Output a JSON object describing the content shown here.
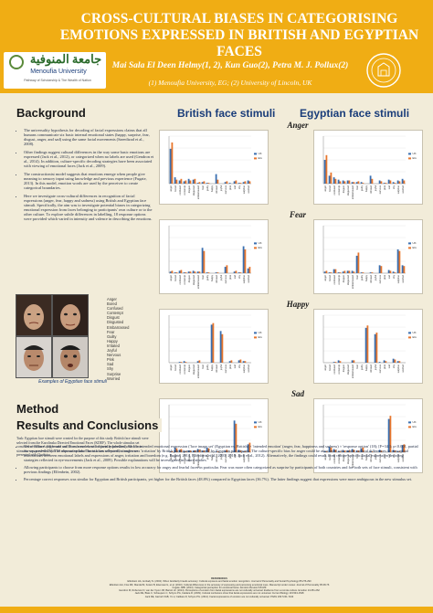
{
  "header": {
    "title": "CROSS-CULTURAL BIASES IN CATEGORISING EMOTIONS EXPRESSED IN BRITISH AND EGYPTIAN FACES",
    "authors": "Mai Sala El Deen Helmy(1, 2), Kun Guo(2), Petra M. J. Pollux(2)",
    "affiliations": "(1) Menoufia University, EG; (2) University of Lincoln, UK",
    "logo_arabic": "جامعة المنوفية",
    "logo_english": "Menoufia University",
    "logo_tagline": "Pathway of Scholarship & The Wealth of Nation",
    "colors": {
      "accent": "#f0ad14",
      "bullet_text": "#1f2a44",
      "column_head": "#1a3d7a",
      "background": "#f2ecd9"
    }
  },
  "background": {
    "title": "Background",
    "bullets": [
      "The universality hypothesis for decoding of facial expressions claims that all humans communicate six basic internal emotional states (happy, surprise, fear, disgust, anger, and sad) using the same facial movements (Saeedizad et al., 2008).",
      "Other findings suggest cultural differences in the way some basic emotions are expressed (Jack et al., 2012), or categorized when no labels are used (Gendron et al., 2014). In addition, culture-specific decoding strategies have been associated with viewing of emotional faces (Jack et al., 2009).",
      "The constructionist model suggests that emotions emerge when people give meaning to sensory input using knowledge and previous experience (Fugate, 2013). In this model, emotion words are used by the perceiver to create categorical boundaries.",
      "Here we investigate cross-cultural differences in recognition of facial expressions (anger, fear, happy and sadness) using British and Egyptian face stimuli. Specifically, the aim was to investigate potential biases in categorizing emotional expression from faces belonging to participants' own culture or to the other culture. To explore subtle differences in labelling, 18 response options were provided which varied in intensity and valence in describing the emotions."
    ],
    "faces_caption": "Examples of Egyptian face stimuli",
    "label_options": [
      "Anger",
      "Bored",
      "Confused",
      "Contempt",
      "Disgust",
      "Disgusted",
      "Embarrassed",
      "Fear",
      "Guilty",
      "Happy",
      "Irritated",
      "Joyful",
      "Nervous",
      "Pink",
      "Sad",
      "Shy",
      "Surprise",
      "Worried"
    ]
  },
  "method": {
    "title": "Method",
    "participants": "Participants: 91 British adults (16 men, 75 women, Age= 21±1.1) and 133 Egyptian adults (12 men, 117 women, Age= 20.4±0.25).",
    "task": "Task: Egyptian face stimuli were created for the purpose of this study. British face stimuli were selected from the Karolinska Directed Emotional Faces (KDEF). The whole stimulus set consisted of 80 faces (10 female and 10 male models with 4 facial expressions). Each face stimulus was presented with 18 response options. The task was self-paced, stimuli were presented with Qualtrics."
  },
  "results": {
    "title": "Results and Conclusions",
    "bullets": [
      "'Own-culture' anger and sad faces were more frequently labelled with the intended emotional expression ('face image set' (Egyptian vs. British) × 'intended emotion' (anger, fear, happiness and sadness) × 'response option' (18); [F=34.1; p<0.001, partial eta-squared=0.25]. The alternative label most often selected for anger was 'irritation' by British participants and 'bored' by Egyptian participants. The culture-specific bias for anger could be associated with subtle cultural differences in conceptual associations between emotional labels and expressions of anger, irritation and boredom (e.g. Fugate, 2014, Elfenbein et al., 2003; 2010; Jack et al., 2012). Alternatively, the findings could result from culture-specific facial expression decoding strategies reflected in eye-movements (Jack et al., 2009). Possible explanations will be investigated in future studies.",
      "Allowing participants to choose from more response options results in low accuracy for angry and fearful faces in particular. Fear was more often categorized as surprise by participants of both countries and for both sets of face stimuli, consistent with previous findings (Elfenbein, 2002).",
      "Percentage correct responses was similar for Egyptian and British participants, yet higher for the British faces (48.8%) compared to Egyptian faces (36.7%). The latter findings suggest that expressions were more ambiguous in the new stimulus set."
    ],
    "references": [
      "REFERENCES",
      "Elfenbein HA, Ambady N. (2002). When familiarity breeds accuracy: Cultural exposure and facial emotion recognition. Journal of Personality and Social Psychology 85:276-290",
      "Elfenbein HA, Fiss MZ, Mandal M, Kotani B, Elsemasi G, et al. (2010). Cultural differences in the accuracy of expressing and perceiving emotional cues. Manuscript under review. Journal of Personality 95:48-76",
      "Fugate JMB. (2013). Categorical perception for emotional faces. Emotion Review 5:84-89",
      "Gendron M, Roberson D, van der Vyver JM, Barrett LF. (2014). Perceptions of emotion from facial expressions are not culturally universal: Evidence from a remote culture. Emotion 14:251-262",
      "Jack RE, Blais C, Scheepers C, Schyns PG, Caldara R. (2009). Cultural confusions show that facial expressions are not universal. Current Biology 19:1543-1548",
      "Jack RE, Garrod OGB, Yu H, Caldara R, Schyns PG. (2012). Facial expressions of emotion are not culturally universal. PNAS 109:7241-7244"
    ]
  },
  "figure": {
    "left_head": "British face stimuli",
    "right_head": "Egyptian face stimuli",
    "emotions": [
      "Anger",
      "Fear",
      "Happy",
      "Sad"
    ],
    "legend": [
      "UK",
      "EG"
    ],
    "option_labels": [
      "anger",
      "bored",
      "confused",
      "contempt",
      "disgust",
      "disgusted",
      "embarrassed",
      "fear",
      "guilty",
      "happy",
      "irritated",
      "joyful",
      "nervous",
      "pink",
      "sad",
      "shy",
      "surprise",
      "worried"
    ]
  },
  "chart_data": [
    {
      "type": "bar",
      "emotion": "Anger",
      "stimuli": "British",
      "categories": [
        "anger",
        "bored",
        "confused",
        "contempt",
        "disgust",
        "disgusted",
        "embarrassed",
        "fear",
        "guilty",
        "happy",
        "irritated",
        "joyful",
        "nervous",
        "pink",
        "sad",
        "shy",
        "surprise",
        "worried"
      ],
      "series": [
        {
          "name": "UK",
          "values": [
            44,
            8,
            4,
            3,
            6,
            5,
            1,
            2,
            1,
            0,
            12,
            0,
            2,
            1,
            3,
            1,
            2,
            4
          ]
        },
        {
          "name": "EG",
          "values": [
            52,
            5,
            6,
            4,
            4,
            6,
            2,
            3,
            1,
            0,
            5,
            0,
            3,
            0,
            4,
            1,
            3,
            3
          ]
        }
      ],
      "ylim": [
        0,
        60
      ]
    },
    {
      "type": "bar",
      "emotion": "Anger",
      "stimuli": "Egyptian",
      "categories": [
        "anger",
        "bored",
        "confused",
        "contempt",
        "disgust",
        "disgusted",
        "embarrassed",
        "fear",
        "guilty",
        "happy",
        "irritated",
        "joyful",
        "nervous",
        "pink",
        "sad",
        "shy",
        "surprise",
        "worried"
      ],
      "series": [
        {
          "name": "UK",
          "values": [
            30,
            10,
            8,
            5,
            4,
            4,
            2,
            2,
            2,
            0,
            10,
            0,
            4,
            1,
            5,
            2,
            4,
            6
          ]
        },
        {
          "name": "EG",
          "values": [
            36,
            14,
            6,
            3,
            3,
            4,
            2,
            3,
            1,
            0,
            6,
            0,
            3,
            1,
            4,
            1,
            3,
            4
          ]
        }
      ],
      "ylim": [
        0,
        60
      ]
    },
    {
      "type": "bar",
      "emotion": "Fear",
      "stimuli": "British",
      "categories": [
        "anger",
        "bored",
        "confused",
        "contempt",
        "disgust",
        "disgusted",
        "embarrassed",
        "fear",
        "guilty",
        "happy",
        "irritated",
        "joyful",
        "nervous",
        "pink",
        "sad",
        "shy",
        "surprise",
        "worried"
      ],
      "series": [
        {
          "name": "UK",
          "values": [
            2,
            1,
            3,
            1,
            2,
            3,
            2,
            32,
            1,
            0,
            1,
            0,
            8,
            0,
            2,
            1,
            34,
            6
          ]
        },
        {
          "name": "EG",
          "values": [
            3,
            1,
            4,
            1,
            2,
            2,
            2,
            28,
            1,
            0,
            1,
            0,
            10,
            0,
            3,
            1,
            30,
            8
          ]
        }
      ],
      "ylim": [
        0,
        60
      ]
    },
    {
      "type": "bar",
      "emotion": "Fear",
      "stimuli": "Egyptian",
      "categories": [
        "anger",
        "bored",
        "confused",
        "contempt",
        "disgust",
        "disgusted",
        "embarrassed",
        "fear",
        "guilty",
        "happy",
        "irritated",
        "joyful",
        "nervous",
        "pink",
        "sad",
        "shy",
        "surprise",
        "worried"
      ],
      "series": [
        {
          "name": "UK",
          "values": [
            2,
            1,
            5,
            1,
            2,
            3,
            3,
            22,
            1,
            0,
            1,
            0,
            10,
            0,
            4,
            2,
            30,
            10
          ]
        },
        {
          "name": "EG",
          "values": [
            3,
            1,
            5,
            1,
            3,
            3,
            2,
            26,
            1,
            0,
            1,
            0,
            9,
            0,
            3,
            1,
            28,
            9
          ]
        }
      ],
      "ylim": [
        0,
        60
      ]
    },
    {
      "type": "bar",
      "emotion": "Happy",
      "stimuli": "British",
      "categories": [
        "anger",
        "bored",
        "confused",
        "contempt",
        "disgust",
        "disgusted",
        "embarrassed",
        "fear",
        "guilty",
        "happy",
        "irritated",
        "joyful",
        "nervous",
        "pink",
        "sad",
        "shy",
        "surprise",
        "worried"
      ],
      "series": [
        {
          "name": "UK",
          "values": [
            0,
            0,
            1,
            2,
            0,
            0,
            2,
            0,
            0,
            48,
            0,
            40,
            0,
            2,
            0,
            3,
            2,
            0
          ]
        },
        {
          "name": "EG",
          "values": [
            0,
            0,
            1,
            1,
            0,
            0,
            3,
            0,
            0,
            50,
            0,
            36,
            0,
            3,
            0,
            4,
            2,
            0
          ]
        }
      ],
      "ylim": [
        0,
        60
      ]
    },
    {
      "type": "bar",
      "emotion": "Happy",
      "stimuli": "Egyptian",
      "categories": [
        "anger",
        "bored",
        "confused",
        "contempt",
        "disgust",
        "disgusted",
        "embarrassed",
        "fear",
        "guilty",
        "happy",
        "irritated",
        "joyful",
        "nervous",
        "pink",
        "sad",
        "shy",
        "surprise",
        "worried"
      ],
      "series": [
        {
          "name": "UK",
          "values": [
            0,
            0,
            1,
            3,
            0,
            0,
            3,
            0,
            0,
            44,
            0,
            36,
            1,
            3,
            0,
            5,
            2,
            0
          ]
        },
        {
          "name": "EG",
          "values": [
            0,
            0,
            1,
            2,
            0,
            0,
            3,
            0,
            0,
            47,
            0,
            38,
            0,
            2,
            0,
            4,
            2,
            0
          ]
        }
      ],
      "ylim": [
        0,
        60
      ]
    },
    {
      "type": "bar",
      "emotion": "Sad",
      "stimuli": "British",
      "categories": [
        "anger",
        "bored",
        "confused",
        "contempt",
        "disgust",
        "disgusted",
        "embarrassed",
        "fear",
        "guilty",
        "happy",
        "irritated",
        "joyful",
        "nervous",
        "pink",
        "sad",
        "shy",
        "surprise",
        "worried"
      ],
      "series": [
        {
          "name": "UK",
          "values": [
            1,
            6,
            3,
            1,
            2,
            2,
            4,
            2,
            6,
            0,
            1,
            0,
            2,
            0,
            40,
            3,
            1,
            10
          ]
        },
        {
          "name": "EG",
          "values": [
            1,
            5,
            4,
            1,
            2,
            2,
            3,
            2,
            5,
            0,
            1,
            0,
            3,
            0,
            36,
            2,
            1,
            12
          ]
        }
      ],
      "ylim": [
        0,
        60
      ]
    },
    {
      "type": "bar",
      "emotion": "Sad",
      "stimuli": "Egyptian",
      "categories": [
        "anger",
        "bored",
        "confused",
        "contempt",
        "disgust",
        "disgusted",
        "embarrassed",
        "fear",
        "guilty",
        "happy",
        "irritated",
        "joyful",
        "nervous",
        "pink",
        "sad",
        "shy",
        "surprise",
        "worried"
      ],
      "series": [
        {
          "name": "UK",
          "values": [
            1,
            7,
            4,
            1,
            2,
            2,
            4,
            2,
            5,
            0,
            1,
            0,
            3,
            0,
            42,
            3,
            1,
            9
          ]
        },
        {
          "name": "EG",
          "values": [
            1,
            6,
            3,
            1,
            2,
            2,
            3,
            2,
            6,
            0,
            1,
            0,
            2,
            0,
            46,
            2,
            1,
            10
          ]
        }
      ],
      "ylim": [
        0,
        60
      ]
    }
  ]
}
